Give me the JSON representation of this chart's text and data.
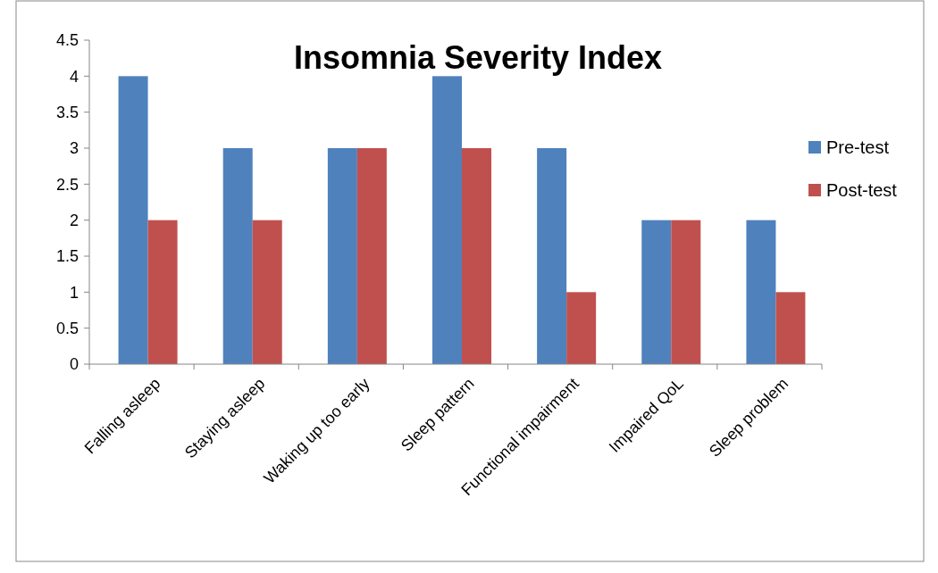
{
  "chart_data": {
    "type": "bar",
    "title": "Insomnia Severity Index",
    "categories": [
      "Falling asleep",
      "Staying asleep",
      "Waking up too early",
      "Sleep pattern",
      "Functional impairment",
      "Impaired QoL",
      "Sleep problem"
    ],
    "series": [
      {
        "name": "Pre-test",
        "color": "#4f81bd",
        "values": [
          4,
          3,
          3,
          4,
          3,
          2,
          2
        ]
      },
      {
        "name": "Post-test",
        "color": "#c0504d",
        "values": [
          2,
          2,
          3,
          3,
          1,
          2,
          1
        ]
      }
    ],
    "ylim": [
      0,
      4.5
    ],
    "yticks": [
      0,
      0.5,
      1,
      1.5,
      2,
      2.5,
      3,
      3.5,
      4,
      4.5
    ],
    "grid": false,
    "legend": "right"
  }
}
